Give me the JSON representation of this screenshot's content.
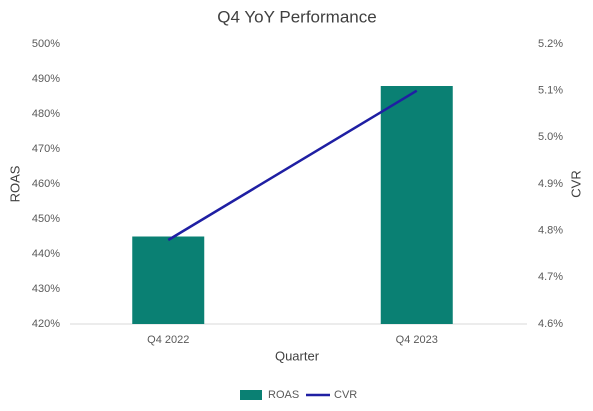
{
  "chart_data": {
    "type": "bar",
    "title": "Q4 YoY Performance",
    "x_label": "Quarter",
    "y_label": "ROAS",
    "y2_label": "CVR",
    "categories": [
      "Q4 2022",
      "Q4 2023"
    ],
    "series": [
      {
        "name": "ROAS",
        "type": "bar",
        "color": "#0a8073",
        "values": [
          445,
          488
        ]
      },
      {
        "name": "CVR",
        "type": "line",
        "color": "#1f1fa3",
        "axis": "y2",
        "values": [
          4.78,
          5.1
        ]
      }
    ],
    "ylim": [
      420,
      500
    ],
    "yticks": [
      {
        "value": 420,
        "label": "420%"
      },
      {
        "value": 430,
        "label": "430%"
      },
      {
        "value": 440,
        "label": "440%"
      },
      {
        "value": 450,
        "label": "450%"
      },
      {
        "value": 460,
        "label": "460%"
      },
      {
        "value": 470,
        "label": "470%"
      },
      {
        "value": 480,
        "label": "480%"
      },
      {
        "value": 490,
        "label": "490%"
      },
      {
        "value": 500,
        "label": "500%"
      }
    ],
    "y2lim": [
      4.6,
      5.2
    ],
    "y2ticks": [
      {
        "value": 4.6,
        "label": "4.6%"
      },
      {
        "value": 4.7,
        "label": "4.7%"
      },
      {
        "value": 4.8,
        "label": "4.8%"
      },
      {
        "value": 4.9,
        "label": "4.9%"
      },
      {
        "value": 5.0,
        "label": "5.0%"
      },
      {
        "value": 5.1,
        "label": "5.1%"
      },
      {
        "value": 5.2,
        "label": "5.2%"
      }
    ],
    "grid": false,
    "legend": "bottom"
  }
}
